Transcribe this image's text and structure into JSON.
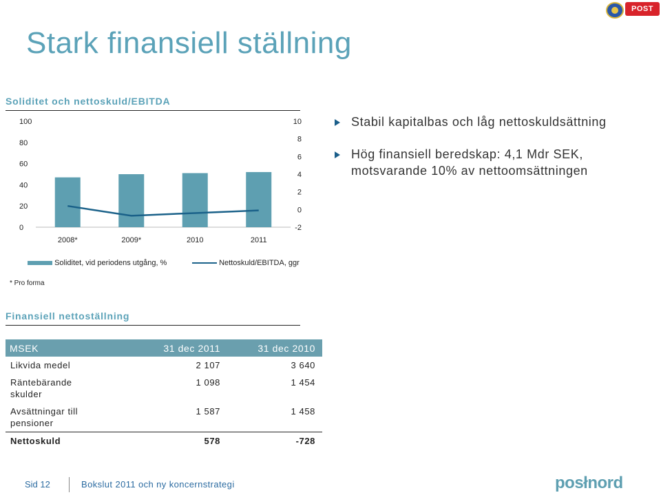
{
  "header": {
    "title": "Stark finansiell ställning",
    "logo_post_text": "POST"
  },
  "chart_section": {
    "heading": "Soliditet och nettoskuld/EBITDA",
    "footnote": "* Pro forma"
  },
  "chart_data": {
    "type": "bar",
    "categories": [
      "2008*",
      "2009*",
      "2010",
      "2011"
    ],
    "series": [
      {
        "name": "Soliditet, vid periodens utgång, %",
        "kind": "bar",
        "axis": "left",
        "color": "#5e9fb1",
        "values": [
          47,
          50,
          51,
          52
        ]
      },
      {
        "name": "Nettoskuld/EBITDA, ggr",
        "kind": "line",
        "axis": "right",
        "color": "#1a6189",
        "values": [
          0.4,
          -0.7,
          -0.4,
          -0.1
        ]
      }
    ],
    "y_left": {
      "min": 0,
      "max": 100,
      "ticks": [
        0,
        20,
        40,
        60,
        80,
        100
      ]
    },
    "y_right": {
      "min": -2,
      "max": 10,
      "ticks": [
        -2,
        0,
        2,
        4,
        6,
        8,
        10
      ]
    },
    "legend_position": "bottom"
  },
  "bullets": [
    {
      "lines": [
        "Stabil kapitalbas och låg nettoskuldsättning"
      ]
    },
    {
      "lines": [
        "Hög finansiell beredskap: 4,1 Mdr SEK,",
        "motsvarande 10% av nettoomsättningen"
      ]
    }
  ],
  "table_section": {
    "heading": "Finansiell nettoställning",
    "headers": [
      "MSEK",
      "31 dec 2011",
      "31 dec 2010"
    ],
    "rows": [
      {
        "label": [
          "Likvida medel"
        ],
        "v2011": "2 107",
        "v2010": "3 640"
      },
      {
        "label": [
          "Räntebärande",
          "skulder"
        ],
        "v2011": "1 098",
        "v2010": "1 454"
      },
      {
        "label": [
          "Avsättningar till",
          "pensioner"
        ],
        "v2011": "1 587",
        "v2010": "1 458"
      }
    ],
    "total": {
      "label": "Nettoskuld",
      "v2011": "578",
      "v2010": "-728"
    }
  },
  "footer": {
    "page": "Sid 12",
    "text": "Bokslut 2011 och ny koncernstrategi",
    "logo": "posłnord"
  },
  "colors": {
    "title": "#5ba2b8",
    "bar": "#5e9fb1",
    "line": "#1a6189",
    "table_header": "#6a9fae"
  }
}
